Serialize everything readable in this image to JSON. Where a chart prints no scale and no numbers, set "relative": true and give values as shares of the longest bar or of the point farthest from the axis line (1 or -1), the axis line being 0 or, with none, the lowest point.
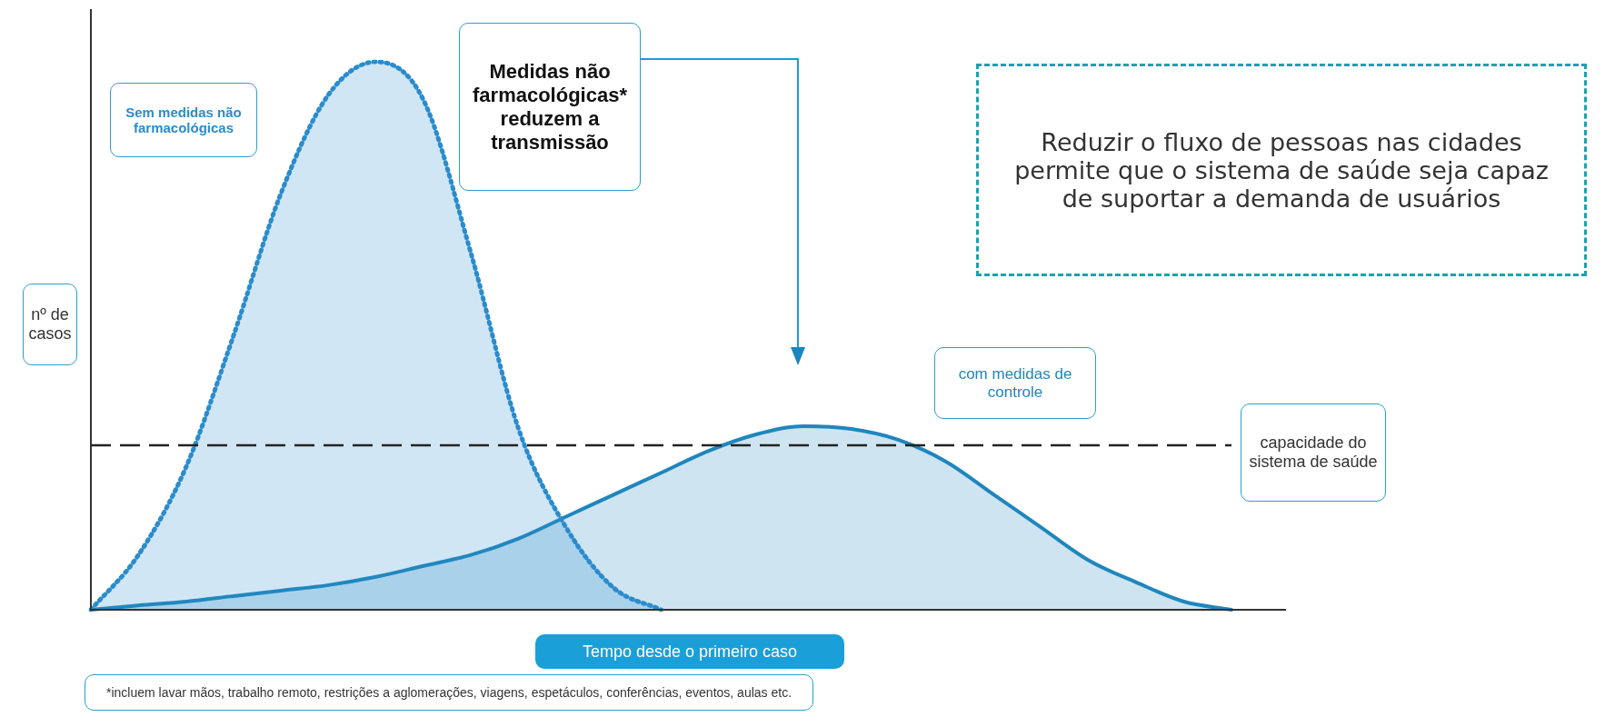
{
  "chart_data": {
    "type": "area",
    "relative": true,
    "xlabel": "Tempo desde o primeiro caso",
    "ylabel": "nº de casos",
    "categories": [
      null,
      null,
      null,
      null,
      null,
      null,
      null,
      null,
      null,
      null,
      null,
      null,
      null,
      null,
      null,
      null,
      null,
      null,
      null,
      null,
      null,
      null,
      null,
      null,
      null
    ],
    "series": [
      {
        "name": "Sem medidas não farmacológicas",
        "color": "#2a8ccc",
        "line_style": "dotted",
        "values": [
          0,
          0.1,
          0.26,
          0.5,
          0.76,
          0.94,
          1,
          0.93,
          0.65,
          0.33,
          0.15,
          0.04,
          0,
          null,
          null,
          null,
          null,
          null,
          null,
          null,
          null,
          null,
          null,
          null,
          null
        ]
      },
      {
        "name": "com medidas de controle",
        "color": "#1f86bd",
        "line_style": "solid",
        "values": [
          0,
          0.008,
          0.015,
          0.025,
          0.035,
          0.045,
          0.06,
          0.08,
          0.1,
          0.13,
          0.17,
          0.21,
          0.25,
          0.29,
          0.32,
          0.335,
          0.33,
          0.31,
          0.27,
          0.21,
          0.15,
          0.09,
          0.05,
          0.015,
          0
        ]
      }
    ],
    "ref_lines": [
      {
        "axis": "y",
        "value": 0.3,
        "label": "capacidade do sistema de saúde",
        "color": "#222222",
        "line_style": "dashed"
      }
    ],
    "annotations": [
      "Medidas não farmacológicas* reduzem a transmissão",
      "Reduzir o fluxo de pessoas nas cidades permite que o sistema de saúde seja capaz de suportar a demanda de usuários",
      "*incluem lavar mãos, trabalho remoto, restrições a aglomerações, viagens, espetáculos, conferências, eventos, aulas etc."
    ],
    "marker": "none",
    "grid": false,
    "legend": false
  }
}
